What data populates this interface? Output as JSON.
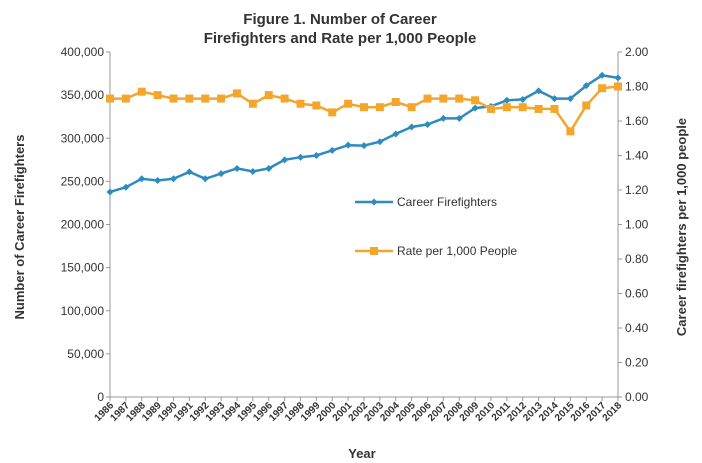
{
  "chart_data": {
    "type": "line",
    "title_line1": "Figure 1. Number of Career",
    "title_line2": "Firefighters and Rate per 1,000 People",
    "xlabel": "Year",
    "ylabel_left": "Number of Career Firefighters",
    "ylabel_right": "Career firefighters per 1,000 people",
    "x": [
      "1986",
      "1987",
      "1988",
      "1989",
      "1990",
      "1991",
      "1992",
      "1993",
      "1994",
      "1995",
      "1996",
      "1997",
      "1998",
      "1999",
      "2000",
      "2001",
      "2002",
      "2003",
      "2004",
      "2005",
      "2006",
      "2007",
      "2008",
      "2009",
      "2010",
      "2011",
      "2012",
      "2013",
      "2014",
      "2015",
      "2016",
      "2017",
      "2018"
    ],
    "y_left_ticks": [
      "0",
      "50,000",
      "100,000",
      "150,000",
      "200,000",
      "250,000",
      "300,000",
      "350,000",
      "400,000"
    ],
    "y_right_ticks": [
      "0.00",
      "0.20",
      "0.40",
      "0.60",
      "0.80",
      "1.00",
      "1.20",
      "1.40",
      "1.60",
      "1.80",
      "2.00"
    ],
    "ylim_left": [
      0,
      400000
    ],
    "ylim_right": [
      0,
      2.0
    ],
    "grid": false,
    "legend_position": "center-right",
    "series": [
      {
        "name": "Career Firefighters",
        "axis": "left",
        "color": "#2e8bbf",
        "marker": "diamond",
        "values": [
          237750,
          243200,
          253000,
          251000,
          253000,
          261000,
          253000,
          259000,
          265000,
          261500,
          265000,
          275000,
          278000,
          280000,
          286000,
          292000,
          291500,
          296000,
          305000,
          313000,
          316000,
          323000,
          323000,
          335000,
          337000,
          344000,
          345000,
          355000,
          346000,
          346000,
          361000,
          373000,
          370000
        ]
      },
      {
        "name": "Rate  per 1,000 People",
        "axis": "right",
        "color": "#f3a62b",
        "marker": "square",
        "values": [
          1.73,
          1.73,
          1.77,
          1.75,
          1.73,
          1.73,
          1.73,
          1.73,
          1.76,
          1.7,
          1.75,
          1.73,
          1.7,
          1.69,
          1.65,
          1.7,
          1.68,
          1.68,
          1.71,
          1.68,
          1.73,
          1.73,
          1.73,
          1.72,
          1.67,
          1.68,
          1.68,
          1.67,
          1.67,
          1.54,
          1.69,
          1.79,
          1.8
        ]
      }
    ]
  }
}
